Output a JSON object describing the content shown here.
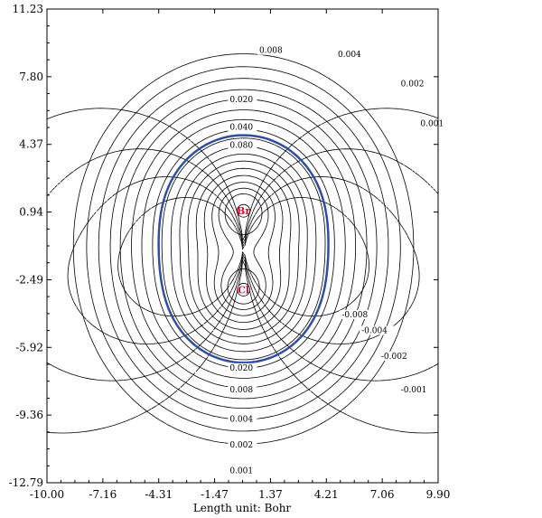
{
  "chart_data": {
    "type": "contour",
    "xlabel": "Length unit: Bohr",
    "xlim": [
      -10.0,
      9.9
    ],
    "ylim": [
      -12.79,
      11.23
    ],
    "x_ticks": [
      "-10.00",
      "-7.16",
      "-4.31",
      "-1.47",
      "1.37",
      "4.21",
      "7.06",
      "9.90"
    ],
    "y_ticks": [
      "11.23",
      "7.80",
      "4.37",
      "0.94",
      "-2.49",
      "-5.92",
      "-9.36",
      "-12.79"
    ],
    "atoms": [
      {
        "label": "Br",
        "x": 0.0,
        "y": 1.0
      },
      {
        "label": "Cl",
        "x": 0.0,
        "y": -3.0
      }
    ],
    "positive_contour_labels": [
      {
        "text": "0.008",
        "x": 0.8,
        "y": 9.0
      },
      {
        "text": "0.004",
        "x": 4.8,
        "y": 8.8
      },
      {
        "text": "0.002",
        "x": 8.0,
        "y": 7.3
      },
      {
        "text": "0.001",
        "x": 9.0,
        "y": 5.3
      },
      {
        "text": "0.020",
        "x": -0.7,
        "y": 6.5
      },
      {
        "text": "0.040",
        "x": -0.7,
        "y": 5.1
      },
      {
        "text": "0.080",
        "x": -0.7,
        "y": 4.2
      },
      {
        "text": "0.020",
        "x": -0.7,
        "y": -7.1
      },
      {
        "text": "0.008",
        "x": -0.7,
        "y": -8.2
      },
      {
        "text": "0.004",
        "x": -0.7,
        "y": -9.7
      },
      {
        "text": "0.002",
        "x": -0.7,
        "y": -11.0
      },
      {
        "text": "0.001",
        "x": -0.7,
        "y": -12.3
      }
    ],
    "negative_contour_labels": [
      {
        "text": "-0.008",
        "x": 5.0,
        "y": -4.4
      },
      {
        "text": "-0.004",
        "x": 6.0,
        "y": -5.2
      },
      {
        "text": "-0.002",
        "x": 7.0,
        "y": -6.5
      },
      {
        "text": "-0.001",
        "x": 8.0,
        "y": -8.2
      }
    ],
    "colors": {
      "contour": "#000000",
      "isosurface": "#2f4ea0",
      "atom_label": "#c8102e"
    }
  }
}
